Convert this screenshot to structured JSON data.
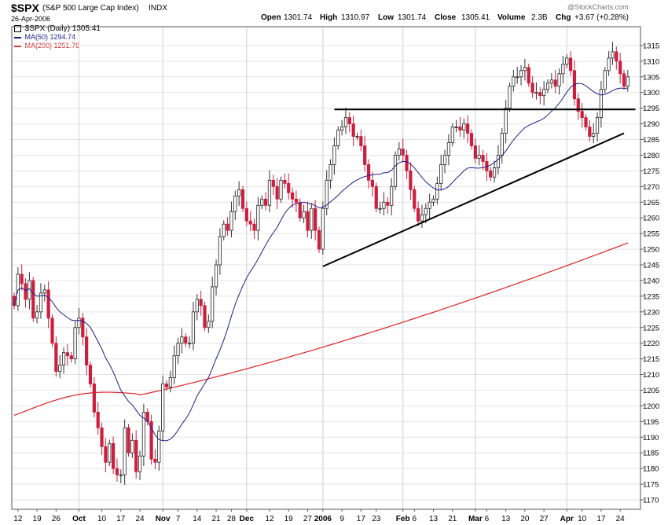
{
  "header": {
    "symbol": "$SPX",
    "name": "(S&P 500 Large Cap Index)",
    "exchange": "INDX",
    "date": "26-Apr-2006",
    "watermark": "@StockCharts.com",
    "open_label": "Open",
    "open": "1301.74",
    "high_label": "High",
    "high": "1310.97",
    "low_label": "Low",
    "low": "1301.74",
    "close_label": "Close",
    "close": "1305.41",
    "volume_label": "Volume",
    "volume": "2.3B",
    "chg_label": "Chg",
    "chg": "+3.67 (+0.28%)"
  },
  "legend": [
    {
      "label": "$SPX (Daily) 1305.41",
      "color": "#000000"
    },
    {
      "label": "MA(50) 1294.74",
      "color": "#1e1e8c"
    },
    {
      "label": "MA(200) 1251.76",
      "color": "#dd2222"
    }
  ],
  "chart_data": {
    "type": "candlestick",
    "y_range": [
      1167,
      1321
    ],
    "y_ticks": [
      1170,
      1175,
      1180,
      1185,
      1190,
      1195,
      1200,
      1205,
      1210,
      1215,
      1220,
      1225,
      1230,
      1235,
      1240,
      1245,
      1250,
      1255,
      1260,
      1265,
      1270,
      1275,
      1280,
      1285,
      1290,
      1295,
      1300,
      1305,
      1310,
      1315
    ],
    "x_labels": [
      {
        "label": "12",
        "idx": 1
      },
      {
        "label": "19",
        "idx": 6
      },
      {
        "label": "26",
        "idx": 11
      },
      {
        "label": "Oct",
        "idx": 17
      },
      {
        "label": "10",
        "idx": 23
      },
      {
        "label": "17",
        "idx": 28
      },
      {
        "label": "24",
        "idx": 33
      },
      {
        "label": "Nov",
        "idx": 39
      },
      {
        "label": "7",
        "idx": 43
      },
      {
        "label": "14",
        "idx": 48
      },
      {
        "label": "21",
        "idx": 53
      },
      {
        "label": "28",
        "idx": 57
      },
      {
        "label": "Dec",
        "idx": 61
      },
      {
        "label": "12",
        "idx": 67
      },
      {
        "label": "19",
        "idx": 72
      },
      {
        "label": "27",
        "idx": 77
      },
      {
        "label": "2006",
        "idx": 81
      },
      {
        "label": "9",
        "idx": 86
      },
      {
        "label": "17",
        "idx": 91
      },
      {
        "label": "23",
        "idx": 95
      },
      {
        "label": "Feb",
        "idx": 102
      },
      {
        "label": "6",
        "idx": 105
      },
      {
        "label": "13",
        "idx": 110
      },
      {
        "label": "21",
        "idx": 115
      },
      {
        "label": "Mar",
        "idx": 121
      },
      {
        "label": "6",
        "idx": 124
      },
      {
        "label": "13",
        "idx": 129
      },
      {
        "label": "20",
        "idx": 134
      },
      {
        "label": "27",
        "idx": 139
      },
      {
        "label": "Apr",
        "idx": 145
      },
      {
        "label": "10",
        "idx": 149
      },
      {
        "label": "17",
        "idx": 154
      },
      {
        "label": "24",
        "idx": 159
      }
    ],
    "gridlines_x_idx": [
      17,
      39,
      61,
      81,
      102,
      121,
      145
    ],
    "closes": [
      1232,
      1242,
      1239,
      1234,
      1240,
      1228,
      1230,
      1236,
      1237,
      1228,
      1220,
      1211,
      1213,
      1217,
      1216,
      1215,
      1225,
      1228,
      1222,
      1213,
      1207,
      1198,
      1193,
      1187,
      1182,
      1188,
      1180,
      1178,
      1178,
      1193,
      1185,
      1189,
      1179,
      1184,
      1198,
      1195,
      1183,
      1182,
      1192,
      1207,
      1206,
      1209,
      1216,
      1220,
      1222,
      1220,
      1220,
      1230,
      1234,
      1232,
      1225,
      1227,
      1238,
      1245,
      1254,
      1258,
      1256,
      1262,
      1267,
      1269,
      1263,
      1259,
      1258,
      1256,
      1264,
      1266,
      1264,
      1272,
      1270,
      1266,
      1272,
      1271,
      1268,
      1266,
      1265,
      1260,
      1262,
      1256,
      1263,
      1256,
      1250,
      1263,
      1272,
      1277,
      1283,
      1288,
      1289,
      1292,
      1290,
      1286,
      1286,
      1283,
      1277,
      1272,
      1270,
      1263,
      1263,
      1265,
      1264,
      1270,
      1280,
      1282,
      1280,
      1275,
      1269,
      1263,
      1259,
      1261,
      1263,
      1265,
      1266,
      1271,
      1277,
      1280,
      1284,
      1289,
      1289,
      1288,
      1290,
      1287,
      1283,
      1279,
      1280,
      1278,
      1275,
      1273,
      1276,
      1280,
      1287,
      1295,
      1302,
      1305,
      1305,
      1307,
      1308,
      1303,
      1300,
      1300,
      1299,
      1301,
      1303,
      1304,
      1302,
      1306,
      1309,
      1311,
      1307,
      1298,
      1294,
      1292,
      1289,
      1286,
      1287,
      1292,
      1301,
      1307,
      1311,
      1313,
      1310,
      1306,
      1302,
      1305
    ]
  }
}
